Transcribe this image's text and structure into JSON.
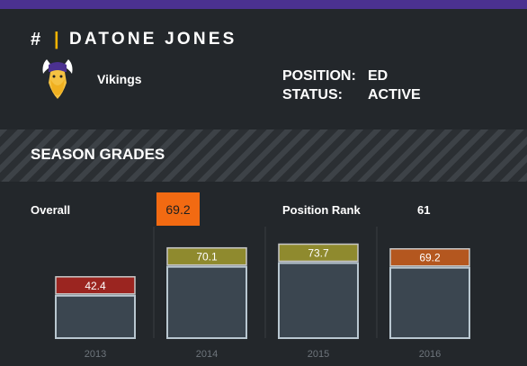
{
  "header": {
    "hash": "#",
    "separator": "|",
    "name": "DATONE JONES"
  },
  "team": {
    "name": "Vikings",
    "logo": "vikings-logo"
  },
  "info": {
    "position_label": "POSITION:",
    "position_value": "ED",
    "status_label": "STATUS:",
    "status_value": "ACTIVE"
  },
  "section": {
    "title": "SEASON GRADES"
  },
  "summary": {
    "overall_label": "Overall",
    "overall_value": "69.2",
    "rank_label": "Position Rank",
    "rank_value": "61"
  },
  "colors": {
    "top_bar": "#4b3190",
    "overall_badge": "#f26a12"
  },
  "chart_data": {
    "type": "bar",
    "categories": [
      "2013",
      "2014",
      "2015",
      "2016"
    ],
    "values": [
      42.4,
      70.1,
      73.7,
      69.2
    ],
    "labels": [
      "42.4",
      "70.1",
      "73.7",
      "69.2"
    ],
    "label_colors": [
      "#9b2520",
      "#8f8a2e",
      "#8f8a2e",
      "#b4571f"
    ],
    "ylim": [
      0,
      100
    ],
    "grid": false,
    "legend": "none"
  }
}
